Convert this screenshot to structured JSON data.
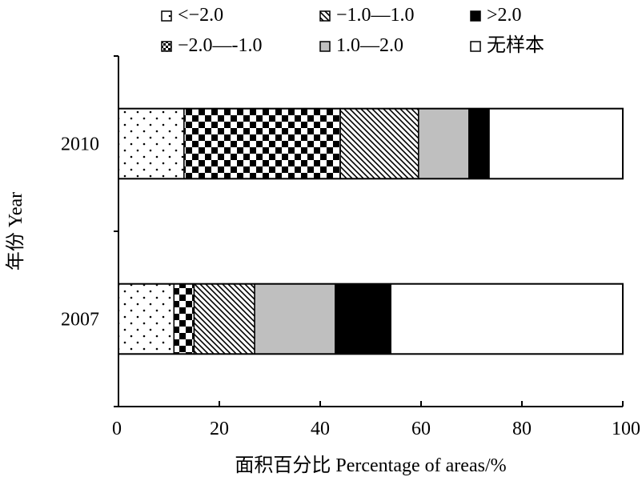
{
  "chart_data": {
    "type": "bar",
    "orientation": "horizontal",
    "stacked": true,
    "categories": [
      "2010",
      "2007"
    ],
    "series": [
      {
        "name": "<−2.0",
        "pattern": "dots",
        "values": [
          13,
          11
        ]
      },
      {
        "name": "−2.0—-1.0",
        "pattern": "checker",
        "values": [
          31,
          4
        ]
      },
      {
        "name": "−1.0—1.0",
        "pattern": "diagonal",
        "values": [
          15.5,
          12
        ]
      },
      {
        "name": "1.0—2.0",
        "pattern": "gray",
        "color": "#bfbfbf",
        "values": [
          10,
          16
        ]
      },
      {
        "name": ">2.0",
        "pattern": "solid",
        "color": "#000000",
        "values": [
          4,
          11
        ]
      },
      {
        "name": "无样本",
        "pattern": "white",
        "color": "#ffffff",
        "values": [
          26.5,
          46
        ]
      }
    ],
    "x_ticks": [
      "0",
      "20",
      "40",
      "60",
      "80",
      "100"
    ],
    "xlim": [
      0,
      100
    ],
    "xlabel": "面积百分比 Percentage of areas/%",
    "ylabel": "年份 Year",
    "grid": false,
    "legend_position": "top"
  }
}
